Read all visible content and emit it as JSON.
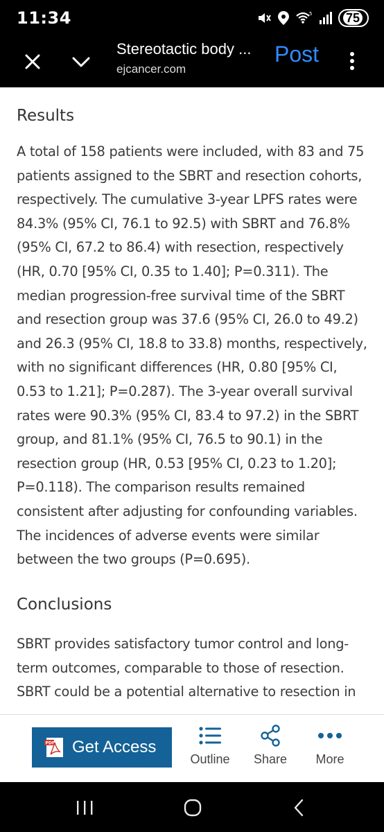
{
  "status_bar": {
    "time": "11:34",
    "icons": [
      "mute-icon",
      "location-icon",
      "wifi-icon",
      "signal-icon"
    ],
    "battery": "75"
  },
  "app_bar": {
    "title": "Stereotactic body ...",
    "domain": "ejcancer.com",
    "post_label": "Post",
    "accent_color": "#2f8cff"
  },
  "article": {
    "results_heading": "Results",
    "results_text": "A total of 158 patients were included, with 83 and 75 patients assigned to the SBRT and resection cohorts, respectively. The cumulative 3-year LPFS rates were 84.3% (95% CI, 76.1 to 92.5) with SBRT and 76.8% (95% CI, 67.2 to 86.4) with resection, respectively (HR, 0.70 [95% CI, 0.35 to 1.40]; P=0.311). The median progression-free survival time of the SBRT and resection group was 37.6 (95% CI, 26.0 to 49.2) and 26.3 (95% CI, 18.8 to 33.8) months, respectively, with no significant differences (HR, 0.80 [95% CI, 0.53 to 1.21]; P=0.287). The 3-year overall survival rates were 90.3% (95% CI, 83.4 to 97.2) in the SBRT group, and 81.1% (95% CI, 76.5 to 90.1) in the resection group (HR, 0.53 [95% CI, 0.23 to 1.20]; P=0.118). The comparison results remained consistent after adjusting for confounding variables. The incidences of adverse events were similar between the two groups (P=0.695).",
    "conclusions_heading": "Conclusions",
    "conclusions_text": "SBRT provides satisfactory tumor control and long-term outcomes, comparable to those of resection. SBRT could be a potential alternative to resection in"
  },
  "action_bar": {
    "get_access_label": "Get Access",
    "get_access_color": "#146297",
    "outline_label": "Outline",
    "share_label": "Share",
    "more_label": "More",
    "icon_color": "#146297"
  },
  "nav_bar": {
    "icons": [
      "recents-icon",
      "home-icon",
      "back-icon"
    ]
  }
}
